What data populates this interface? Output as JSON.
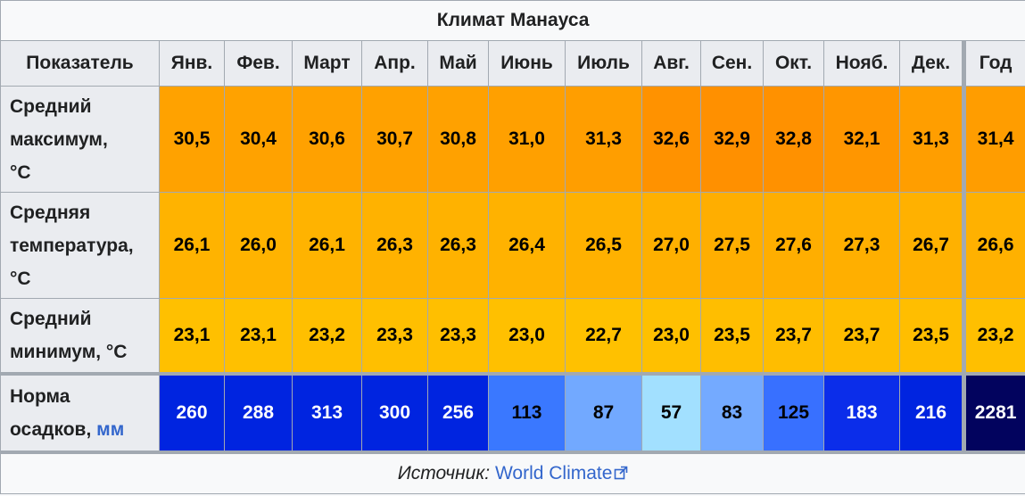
{
  "title": "Климат Манауса",
  "header": {
    "indicator": "Показатель",
    "months": [
      "Янв.",
      "Фев.",
      "Март",
      "Апр.",
      "Май",
      "Июнь",
      "Июль",
      "Авг.",
      "Сен.",
      "Окт.",
      "Нояб.",
      "Дек."
    ],
    "year": "Год"
  },
  "rows": {
    "max": {
      "label_lines": [
        "Средний",
        "максимум,",
        "°C"
      ],
      "values": [
        "30,5",
        "30,4",
        "30,6",
        "30,7",
        "30,8",
        "31,0",
        "31,3",
        "32,6",
        "32,9",
        "32,8",
        "32,1",
        "31,3"
      ],
      "year": "31,4",
      "colors": [
        "#ffa200",
        "#ffa200",
        "#ffa100",
        "#ffa100",
        "#ffa100",
        "#ffa000",
        "#ff9e00",
        "#ff9200",
        "#ff9000",
        "#ff9100",
        "#ff9600",
        "#ff9e00",
        "#ff9d00"
      ]
    },
    "avg": {
      "label_lines": [
        "Средняя",
        "температура,",
        "°C"
      ],
      "values": [
        "26,1",
        "26,0",
        "26,1",
        "26,3",
        "26,3",
        "26,4",
        "26,5",
        "27,0",
        "27,5",
        "27,6",
        "27,3",
        "26,7"
      ],
      "year": "26,6",
      "colors": [
        "#ffb300",
        "#ffb300",
        "#ffb300",
        "#ffb200",
        "#ffb200",
        "#ffb200",
        "#ffb100",
        "#ffb000",
        "#ffae00",
        "#ffae00",
        "#ffaf00",
        "#ffb100",
        "#ffb100"
      ]
    },
    "min": {
      "label_lines": [
        "Средний",
        "минимум, °C"
      ],
      "values": [
        "23,1",
        "23,1",
        "23,2",
        "23,3",
        "23,3",
        "23,0",
        "22,7",
        "23,0",
        "23,5",
        "23,7",
        "23,7",
        "23,5"
      ],
      "year": "23,2",
      "colors": [
        "#ffc000",
        "#ffc000",
        "#ffbf00",
        "#ffbf00",
        "#ffbf00",
        "#ffc000",
        "#ffc100",
        "#ffc000",
        "#ffbe00",
        "#ffbd00",
        "#ffbd00",
        "#ffbe00",
        "#ffbf00"
      ]
    },
    "precip": {
      "label_lines": [
        "Норма",
        "осадков,"
      ],
      "unit": "мм",
      "values": [
        "260",
        "288",
        "313",
        "300",
        "256",
        "113",
        "87",
        "57",
        "83",
        "125",
        "183",
        "216"
      ],
      "year": "2281",
      "colors": [
        "#0024e0",
        "#0024e0",
        "#0024e0",
        "#0024e0",
        "#0024e0",
        "#3a78ff",
        "#72a9ff",
        "#a2e0ff",
        "#74aaff",
        "#3870ff",
        "#0b2dea",
        "#0024e0",
        "#02035e"
      ],
      "text_colors": [
        "#ffffff",
        "#ffffff",
        "#ffffff",
        "#ffffff",
        "#ffffff",
        "#000000",
        "#000000",
        "#000000",
        "#000000",
        "#000000",
        "#ffffff",
        "#ffffff",
        "#ffffff"
      ]
    }
  },
  "footer": {
    "source_label": "Источник:",
    "source_link": "World Climate",
    "link_icon": "external-link-icon"
  }
}
